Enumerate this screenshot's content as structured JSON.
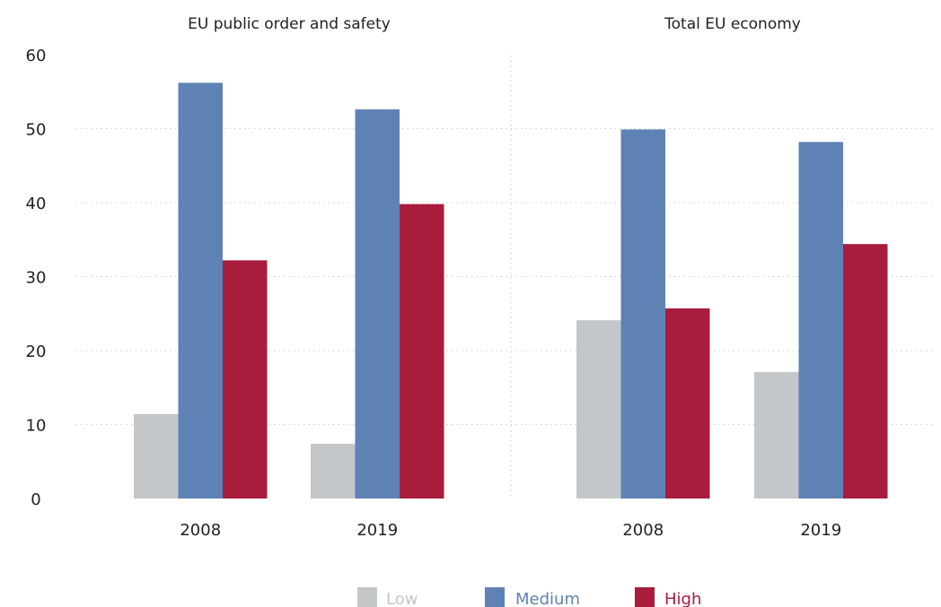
{
  "chart_data": {
    "type": "bar",
    "ylim": [
      0,
      60
    ],
    "yticks": [
      "0",
      "10",
      "20",
      "30",
      "40",
      "50",
      "60"
    ],
    "grid": "dotted horizontal",
    "legend_position": "bottom-center",
    "series": [
      {
        "name": "Low",
        "color": "#c3c7c9"
      },
      {
        "name": "Medium",
        "color": "#5f82b5"
      },
      {
        "name": "High",
        "color": "#a81c3c"
      }
    ],
    "panels": [
      {
        "title": "EU public order and safety",
        "categories": [
          "2008",
          "2019"
        ],
        "values": {
          "Low": [
            11.4,
            7.4
          ],
          "Medium": [
            56.2,
            52.6
          ],
          "High": [
            32.2,
            39.8
          ]
        }
      },
      {
        "title": "Total EU economy",
        "categories": [
          "2008",
          "2019"
        ],
        "values": {
          "Low": [
            24.1,
            17.1
          ],
          "Medium": [
            49.9,
            48.2
          ],
          "High": [
            25.7,
            34.4
          ]
        }
      }
    ]
  }
}
